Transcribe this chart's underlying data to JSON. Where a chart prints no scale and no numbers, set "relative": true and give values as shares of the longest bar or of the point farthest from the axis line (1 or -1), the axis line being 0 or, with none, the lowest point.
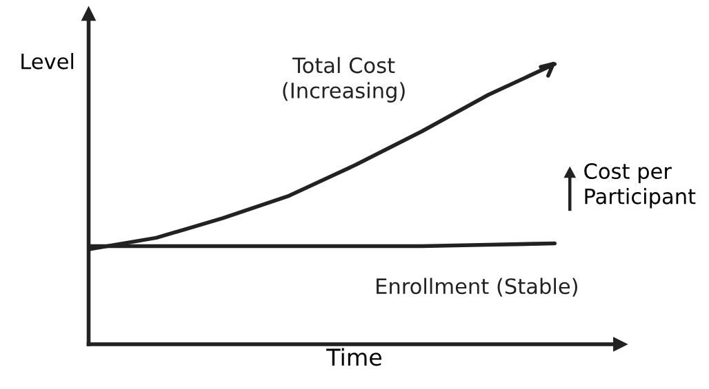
{
  "chart_data": {
    "type": "line",
    "relative": true,
    "xlabel": "Time",
    "ylabel": "Level",
    "categories": [
      null,
      null,
      null,
      null,
      null,
      null,
      null,
      null
    ],
    "series": [
      {
        "name": "Total Cost\n(Increasing)",
        "color": "#222222",
        "values": [
          0.34,
          0.38,
          0.45,
          0.53,
          0.64,
          0.76,
          0.89,
          1.0
        ]
      },
      {
        "name": "Enrollment (Stable)",
        "color": "#222222",
        "values": [
          0.35,
          0.35,
          0.35,
          0.35,
          0.35,
          0.35,
          0.355,
          0.36
        ]
      }
    ],
    "annotations": [
      "Cost per\nParticipant"
    ],
    "legend": false,
    "marker": "none",
    "line_style": "solid"
  }
}
